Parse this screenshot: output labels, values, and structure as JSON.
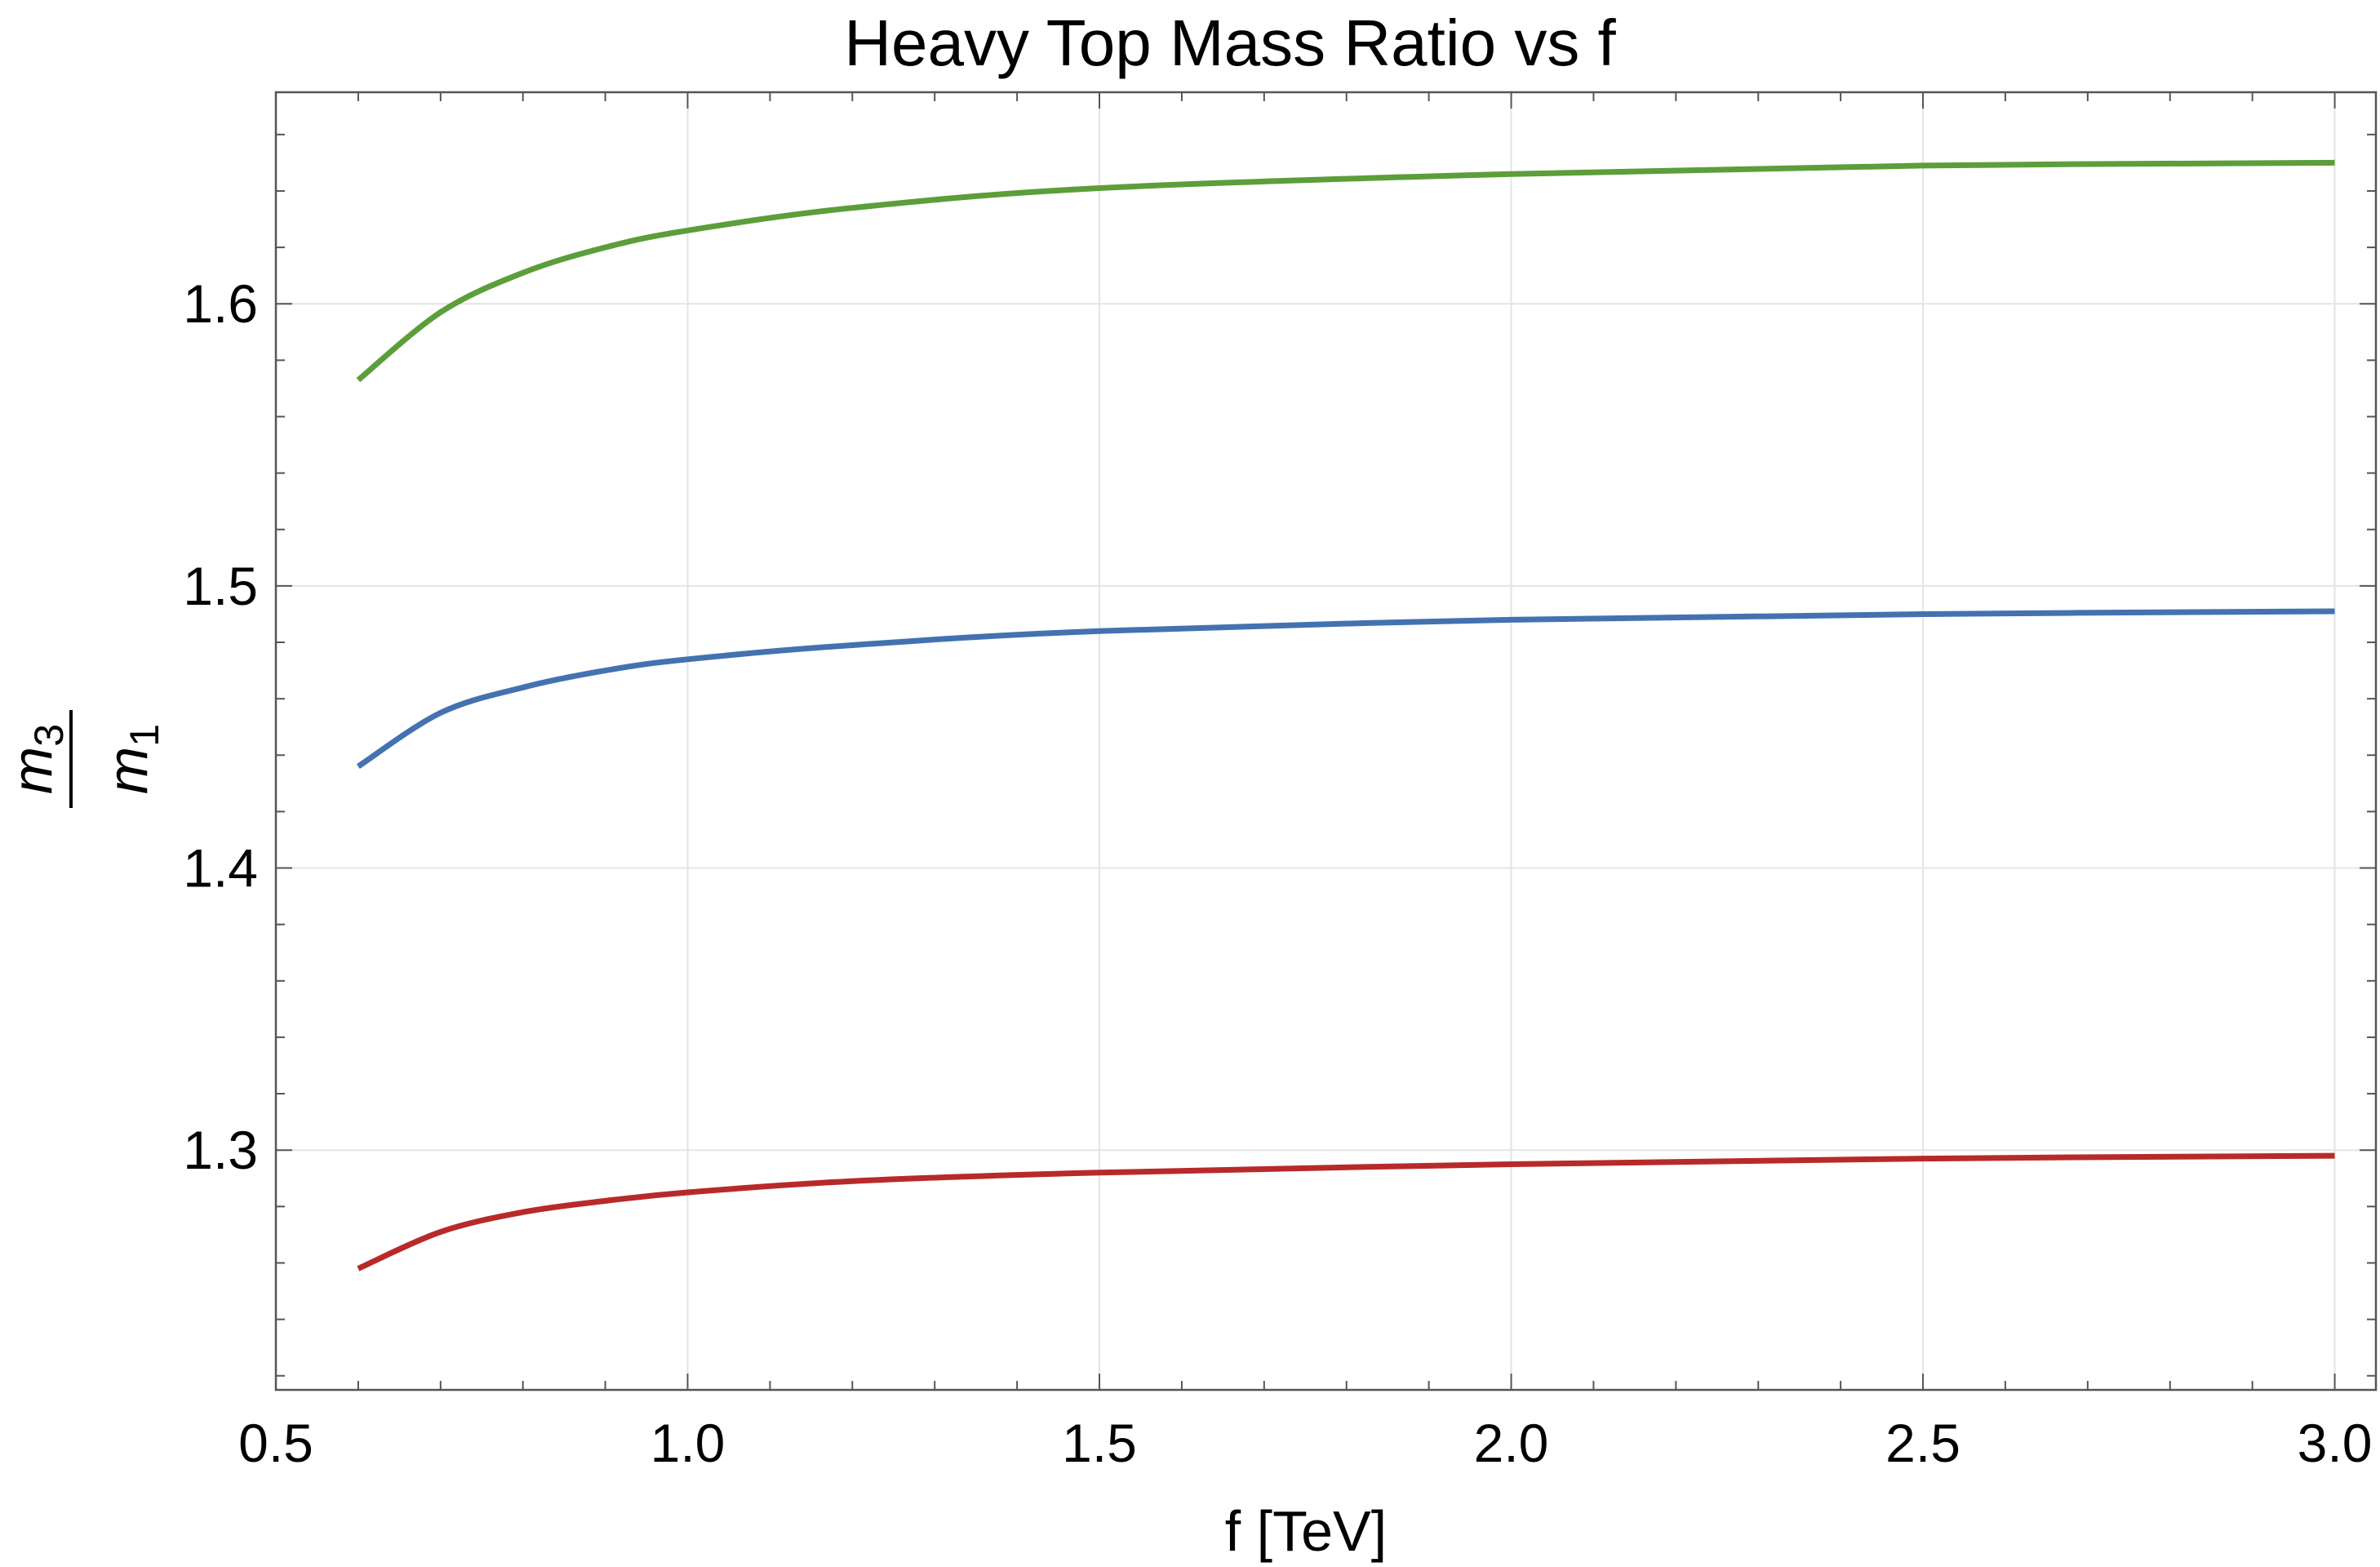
{
  "chart_data": {
    "type": "line",
    "title": "Heavy Top Mass Ratio vs f",
    "xlabel": "f [TeV]",
    "ylabel": {
      "numerator": "m",
      "numerator_sub": "3",
      "denominator": "m",
      "denominator_sub": "1"
    },
    "xlim": [
      0.5,
      3.05
    ],
    "ylim": [
      1.215,
      1.675
    ],
    "x_ticks": [
      0.5,
      1.0,
      1.5,
      2.0,
      2.5,
      3.0
    ],
    "x_tick_labels": [
      "0.5",
      "1.0",
      "1.5",
      "2.0",
      "2.5",
      "3.0"
    ],
    "y_ticks": [
      1.3,
      1.4,
      1.5,
      1.6
    ],
    "y_tick_labels": [
      "1.3",
      "1.4",
      "1.5",
      "1.6"
    ],
    "grid": true,
    "legend": "none",
    "series": [
      {
        "name": "green curve",
        "color": "#5c9e3a",
        "x": [
          0.6,
          0.7,
          0.8,
          0.9,
          1.0,
          1.2,
          1.5,
          2.0,
          2.5,
          3.0
        ],
        "y": [
          1.573,
          1.597,
          1.611,
          1.62,
          1.626,
          1.634,
          1.641,
          1.646,
          1.649,
          1.65
        ]
      },
      {
        "name": "blue curve",
        "color": "#4472b0",
        "x": [
          0.6,
          0.7,
          0.8,
          0.9,
          1.0,
          1.2,
          1.5,
          2.0,
          2.5,
          3.0
        ],
        "y": [
          1.436,
          1.455,
          1.464,
          1.47,
          1.474,
          1.479,
          1.484,
          1.488,
          1.49,
          1.491
        ]
      },
      {
        "name": "red curve",
        "color": "#b82a2a",
        "x": [
          0.6,
          0.7,
          0.8,
          0.9,
          1.0,
          1.2,
          1.5,
          2.0,
          2.5,
          3.0
        ],
        "y": [
          1.258,
          1.271,
          1.278,
          1.282,
          1.285,
          1.289,
          1.292,
          1.295,
          1.297,
          1.298
        ]
      }
    ]
  }
}
